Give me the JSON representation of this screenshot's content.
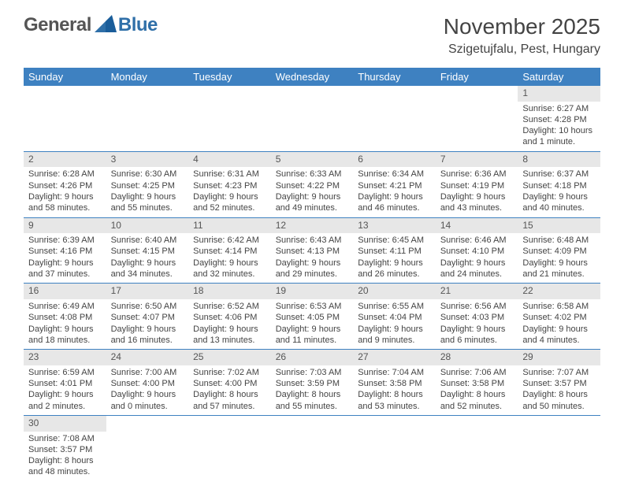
{
  "brand": {
    "general": "General",
    "blue": "Blue"
  },
  "header": {
    "month_title": "November 2025",
    "location": "Szigetujfalu, Pest, Hungary"
  },
  "colors": {
    "header_bg": "#3e81c1",
    "daynum_bg": "#e7e7e7",
    "row_border": "#3e81c1",
    "brand_blue": "#2f6fa8",
    "brand_gray": "#555555"
  },
  "weekdays": [
    "Sunday",
    "Monday",
    "Tuesday",
    "Wednesday",
    "Thursday",
    "Friday",
    "Saturday"
  ],
  "weeks": [
    [
      null,
      null,
      null,
      null,
      null,
      null,
      {
        "n": "1",
        "sunrise": "Sunrise: 6:27 AM",
        "sunset": "Sunset: 4:28 PM",
        "daylight": "Daylight: 10 hours and 1 minute."
      }
    ],
    [
      {
        "n": "2",
        "sunrise": "Sunrise: 6:28 AM",
        "sunset": "Sunset: 4:26 PM",
        "daylight": "Daylight: 9 hours and 58 minutes."
      },
      {
        "n": "3",
        "sunrise": "Sunrise: 6:30 AM",
        "sunset": "Sunset: 4:25 PM",
        "daylight": "Daylight: 9 hours and 55 minutes."
      },
      {
        "n": "4",
        "sunrise": "Sunrise: 6:31 AM",
        "sunset": "Sunset: 4:23 PM",
        "daylight": "Daylight: 9 hours and 52 minutes."
      },
      {
        "n": "5",
        "sunrise": "Sunrise: 6:33 AM",
        "sunset": "Sunset: 4:22 PM",
        "daylight": "Daylight: 9 hours and 49 minutes."
      },
      {
        "n": "6",
        "sunrise": "Sunrise: 6:34 AM",
        "sunset": "Sunset: 4:21 PM",
        "daylight": "Daylight: 9 hours and 46 minutes."
      },
      {
        "n": "7",
        "sunrise": "Sunrise: 6:36 AM",
        "sunset": "Sunset: 4:19 PM",
        "daylight": "Daylight: 9 hours and 43 minutes."
      },
      {
        "n": "8",
        "sunrise": "Sunrise: 6:37 AM",
        "sunset": "Sunset: 4:18 PM",
        "daylight": "Daylight: 9 hours and 40 minutes."
      }
    ],
    [
      {
        "n": "9",
        "sunrise": "Sunrise: 6:39 AM",
        "sunset": "Sunset: 4:16 PM",
        "daylight": "Daylight: 9 hours and 37 minutes."
      },
      {
        "n": "10",
        "sunrise": "Sunrise: 6:40 AM",
        "sunset": "Sunset: 4:15 PM",
        "daylight": "Daylight: 9 hours and 34 minutes."
      },
      {
        "n": "11",
        "sunrise": "Sunrise: 6:42 AM",
        "sunset": "Sunset: 4:14 PM",
        "daylight": "Daylight: 9 hours and 32 minutes."
      },
      {
        "n": "12",
        "sunrise": "Sunrise: 6:43 AM",
        "sunset": "Sunset: 4:13 PM",
        "daylight": "Daylight: 9 hours and 29 minutes."
      },
      {
        "n": "13",
        "sunrise": "Sunrise: 6:45 AM",
        "sunset": "Sunset: 4:11 PM",
        "daylight": "Daylight: 9 hours and 26 minutes."
      },
      {
        "n": "14",
        "sunrise": "Sunrise: 6:46 AM",
        "sunset": "Sunset: 4:10 PM",
        "daylight": "Daylight: 9 hours and 24 minutes."
      },
      {
        "n": "15",
        "sunrise": "Sunrise: 6:48 AM",
        "sunset": "Sunset: 4:09 PM",
        "daylight": "Daylight: 9 hours and 21 minutes."
      }
    ],
    [
      {
        "n": "16",
        "sunrise": "Sunrise: 6:49 AM",
        "sunset": "Sunset: 4:08 PM",
        "daylight": "Daylight: 9 hours and 18 minutes."
      },
      {
        "n": "17",
        "sunrise": "Sunrise: 6:50 AM",
        "sunset": "Sunset: 4:07 PM",
        "daylight": "Daylight: 9 hours and 16 minutes."
      },
      {
        "n": "18",
        "sunrise": "Sunrise: 6:52 AM",
        "sunset": "Sunset: 4:06 PM",
        "daylight": "Daylight: 9 hours and 13 minutes."
      },
      {
        "n": "19",
        "sunrise": "Sunrise: 6:53 AM",
        "sunset": "Sunset: 4:05 PM",
        "daylight": "Daylight: 9 hours and 11 minutes."
      },
      {
        "n": "20",
        "sunrise": "Sunrise: 6:55 AM",
        "sunset": "Sunset: 4:04 PM",
        "daylight": "Daylight: 9 hours and 9 minutes."
      },
      {
        "n": "21",
        "sunrise": "Sunrise: 6:56 AM",
        "sunset": "Sunset: 4:03 PM",
        "daylight": "Daylight: 9 hours and 6 minutes."
      },
      {
        "n": "22",
        "sunrise": "Sunrise: 6:58 AM",
        "sunset": "Sunset: 4:02 PM",
        "daylight": "Daylight: 9 hours and 4 minutes."
      }
    ],
    [
      {
        "n": "23",
        "sunrise": "Sunrise: 6:59 AM",
        "sunset": "Sunset: 4:01 PM",
        "daylight": "Daylight: 9 hours and 2 minutes."
      },
      {
        "n": "24",
        "sunrise": "Sunrise: 7:00 AM",
        "sunset": "Sunset: 4:00 PM",
        "daylight": "Daylight: 9 hours and 0 minutes."
      },
      {
        "n": "25",
        "sunrise": "Sunrise: 7:02 AM",
        "sunset": "Sunset: 4:00 PM",
        "daylight": "Daylight: 8 hours and 57 minutes."
      },
      {
        "n": "26",
        "sunrise": "Sunrise: 7:03 AM",
        "sunset": "Sunset: 3:59 PM",
        "daylight": "Daylight: 8 hours and 55 minutes."
      },
      {
        "n": "27",
        "sunrise": "Sunrise: 7:04 AM",
        "sunset": "Sunset: 3:58 PM",
        "daylight": "Daylight: 8 hours and 53 minutes."
      },
      {
        "n": "28",
        "sunrise": "Sunrise: 7:06 AM",
        "sunset": "Sunset: 3:58 PM",
        "daylight": "Daylight: 8 hours and 52 minutes."
      },
      {
        "n": "29",
        "sunrise": "Sunrise: 7:07 AM",
        "sunset": "Sunset: 3:57 PM",
        "daylight": "Daylight: 8 hours and 50 minutes."
      }
    ],
    [
      {
        "n": "30",
        "sunrise": "Sunrise: 7:08 AM",
        "sunset": "Sunset: 3:57 PM",
        "daylight": "Daylight: 8 hours and 48 minutes."
      },
      null,
      null,
      null,
      null,
      null,
      null
    ]
  ]
}
